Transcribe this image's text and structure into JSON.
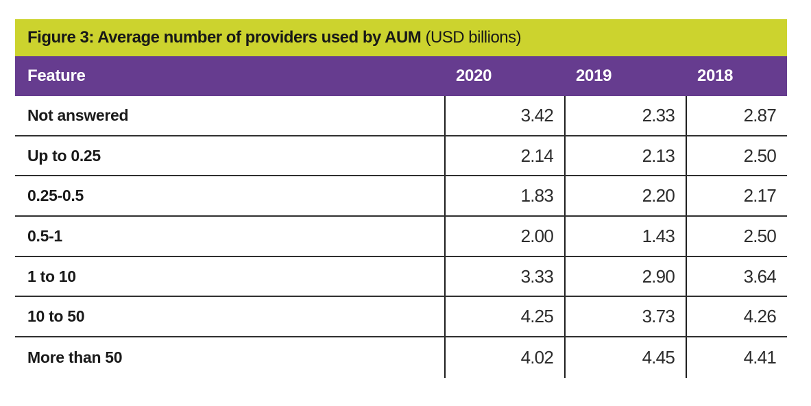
{
  "figure": {
    "title_bold": "Figure 3: Average number of providers used by AUM",
    "title_unit": " (USD billions)"
  },
  "colors": {
    "title_bar_bg": "#ccd32e",
    "header_bg": "#663c8f",
    "header_text": "#ffffff",
    "body_text": "#1a1a1a",
    "grid_line": "#2f2f2f"
  },
  "table": {
    "columns": [
      "Feature",
      "2020",
      "2019",
      "2018"
    ],
    "rows": [
      {
        "feature": "Not answered",
        "values": [
          "3.42",
          "2.33",
          "2.87"
        ]
      },
      {
        "feature": "Up to 0.25",
        "values": [
          "2.14",
          "2.13",
          "2.50"
        ]
      },
      {
        "feature": "0.25-0.5",
        "values": [
          "1.83",
          "2.20",
          "2.17"
        ]
      },
      {
        "feature": "0.5-1",
        "values": [
          "2.00",
          "1.43",
          "2.50"
        ]
      },
      {
        "feature": "1 to 10",
        "values": [
          "3.33",
          "2.90",
          "3.64"
        ]
      },
      {
        "feature": "10 to 50",
        "values": [
          "4.25",
          "3.73",
          "4.26"
        ]
      },
      {
        "feature": "More than 50",
        "values": [
          "4.02",
          "4.45",
          "4.41"
        ]
      }
    ]
  },
  "chart_data": {
    "type": "table",
    "title": "Figure 3: Average number of providers used by AUM (USD billions)",
    "columns": [
      "Feature",
      "2020",
      "2019",
      "2018"
    ],
    "categories": [
      "Not answered",
      "Up to 0.25",
      "0.25-0.5",
      "0.5-1",
      "1 to 10",
      "10 to 50",
      "More than 50"
    ],
    "series": [
      {
        "name": "2020",
        "values": [
          3.42,
          2.14,
          1.83,
          2.0,
          3.33,
          4.25,
          4.02
        ]
      },
      {
        "name": "2019",
        "values": [
          2.33,
          2.13,
          2.2,
          1.43,
          2.9,
          3.73,
          4.45
        ]
      },
      {
        "name": "2018",
        "values": [
          2.87,
          2.5,
          2.17,
          2.5,
          3.64,
          4.26,
          4.41
        ]
      }
    ]
  }
}
